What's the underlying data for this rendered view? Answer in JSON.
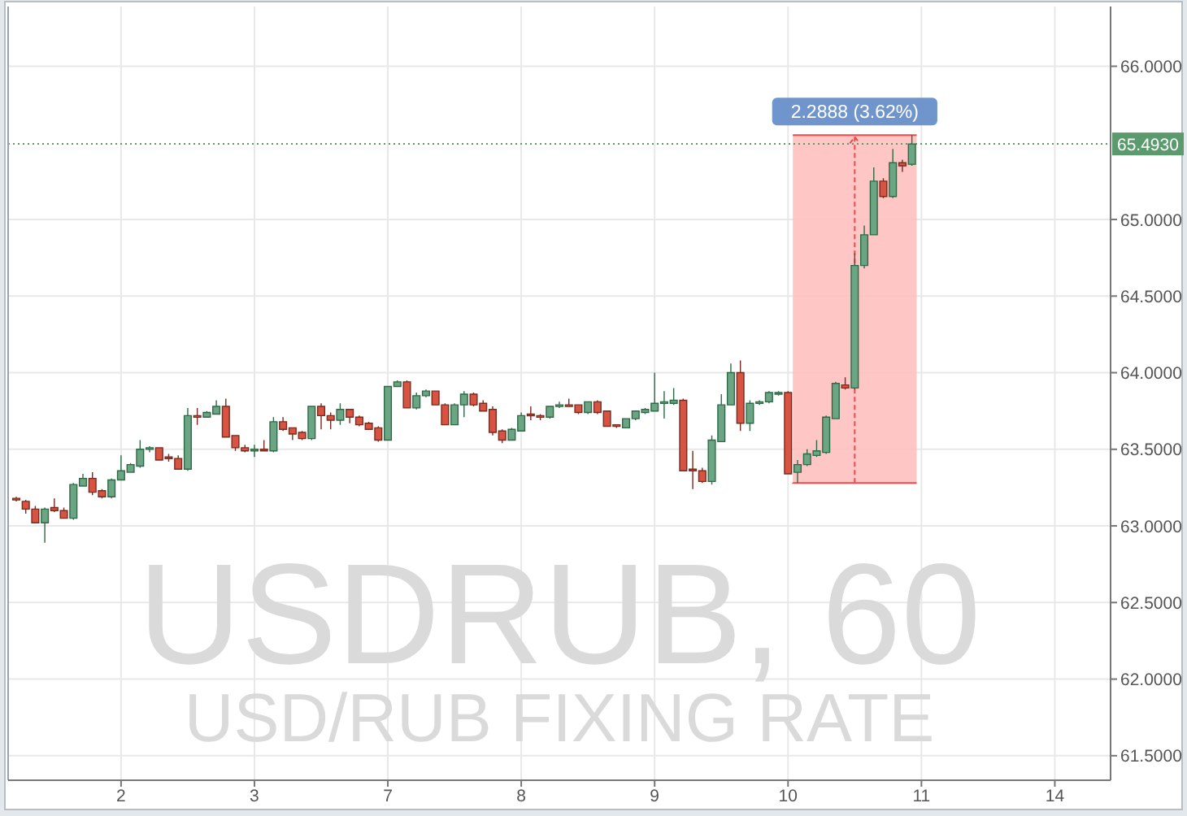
{
  "chart_data": {
    "type": "candlestick",
    "title": "USDRUB, 60",
    "subtitle": "USD/RUB FIXING RATE",
    "categories": [
      null,
      null,
      null,
      null,
      null,
      null,
      null,
      null,
      null,
      null,
      null,
      "2",
      null,
      null,
      null,
      null,
      null,
      null,
      null,
      null,
      null,
      null,
      null,
      null,
      null,
      "3",
      null,
      null,
      null,
      null,
      null,
      null,
      null,
      null,
      null,
      null,
      null,
      null,
      null,
      "7",
      null,
      null,
      null,
      null,
      null,
      null,
      null,
      null,
      null,
      null,
      null,
      null,
      null,
      "8",
      null,
      null,
      null,
      null,
      null,
      null,
      null,
      null,
      null,
      null,
      null,
      null,
      null,
      "9",
      null,
      null,
      null,
      null,
      null,
      null,
      null,
      null,
      null,
      null,
      null,
      null,
      null,
      "10",
      null,
      null,
      null,
      null,
      null,
      null,
      null,
      null,
      null,
      null,
      null,
      null,
      null,
      "11",
      null,
      null,
      null,
      null,
      null,
      null,
      null,
      null,
      null,
      null,
      null,
      null,
      null,
      "14",
      null,
      null,
      null,
      null,
      null
    ],
    "ohlc": [
      [
        63.18,
        63.19,
        63.16,
        63.17
      ],
      [
        63.16,
        63.17,
        63.08,
        63.11
      ],
      [
        63.11,
        63.13,
        63.02,
        63.02
      ],
      [
        63.02,
        63.12,
        62.89,
        63.11
      ],
      [
        63.12,
        63.18,
        63.09,
        63.1
      ],
      [
        63.1,
        63.12,
        63.05,
        63.05
      ],
      [
        63.05,
        63.28,
        63.04,
        63.27
      ],
      [
        63.26,
        63.34,
        63.26,
        63.31
      ],
      [
        63.31,
        63.35,
        63.2,
        63.22
      ],
      [
        63.23,
        63.24,
        63.18,
        63.19
      ],
      [
        63.19,
        63.31,
        63.18,
        63.3
      ],
      [
        63.3,
        63.46,
        63.3,
        63.36
      ],
      [
        63.35,
        63.41,
        63.35,
        63.4
      ],
      [
        63.39,
        63.56,
        63.38,
        63.5
      ],
      [
        63.5,
        63.52,
        63.48,
        63.51
      ],
      [
        63.51,
        63.51,
        63.43,
        63.43
      ],
      [
        63.45,
        63.47,
        63.42,
        63.44
      ],
      [
        63.44,
        63.46,
        63.37,
        63.37
      ],
      [
        63.37,
        63.77,
        63.36,
        63.72
      ],
      [
        63.72,
        63.77,
        63.66,
        63.71
      ],
      [
        63.71,
        63.75,
        63.71,
        63.74
      ],
      [
        63.73,
        63.82,
        63.73,
        63.78
      ],
      [
        63.78,
        63.83,
        63.58,
        63.58
      ],
      [
        63.59,
        63.59,
        63.49,
        63.51
      ],
      [
        63.51,
        63.53,
        63.48,
        63.49
      ],
      [
        63.49,
        63.53,
        63.45,
        63.5
      ],
      [
        63.5,
        63.56,
        63.49,
        63.49
      ],
      [
        63.49,
        63.71,
        63.48,
        63.68
      ],
      [
        63.68,
        63.71,
        63.62,
        63.63
      ],
      [
        63.64,
        63.64,
        63.56,
        63.6
      ],
      [
        63.61,
        63.62,
        63.56,
        63.57
      ],
      [
        63.57,
        63.78,
        63.56,
        63.78
      ],
      [
        63.78,
        63.8,
        63.63,
        63.72
      ],
      [
        63.72,
        63.74,
        63.63,
        63.69
      ],
      [
        63.69,
        63.8,
        63.66,
        63.76
      ],
      [
        63.76,
        63.76,
        63.67,
        63.71
      ],
      [
        63.71,
        63.72,
        63.65,
        63.66
      ],
      [
        63.67,
        63.68,
        63.63,
        63.63
      ],
      [
        63.64,
        63.65,
        63.55,
        63.56
      ],
      [
        63.56,
        63.91,
        63.56,
        63.91
      ],
      [
        63.91,
        63.95,
        63.91,
        63.94
      ],
      [
        63.94,
        63.95,
        63.77,
        63.77
      ],
      [
        63.77,
        63.87,
        63.76,
        63.85
      ],
      [
        63.85,
        63.89,
        63.84,
        63.88
      ],
      [
        63.88,
        63.88,
        63.79,
        63.79
      ],
      [
        63.79,
        63.8,
        63.66,
        63.66
      ],
      [
        63.66,
        63.8,
        63.66,
        63.79
      ],
      [
        63.79,
        63.88,
        63.71,
        63.86
      ],
      [
        63.86,
        63.87,
        63.78,
        63.79
      ],
      [
        63.8,
        63.82,
        63.75,
        63.75
      ],
      [
        63.76,
        63.78,
        63.59,
        63.61
      ],
      [
        63.62,
        63.63,
        63.54,
        63.56
      ],
      [
        63.56,
        63.64,
        63.56,
        63.63
      ],
      [
        63.62,
        63.74,
        63.62,
        63.72
      ],
      [
        63.73,
        63.78,
        63.69,
        63.72
      ],
      [
        63.72,
        63.73,
        63.69,
        63.71
      ],
      [
        63.71,
        63.78,
        63.7,
        63.78
      ],
      [
        63.78,
        63.81,
        63.77,
        63.79
      ],
      [
        63.79,
        63.83,
        63.78,
        63.78
      ],
      [
        63.79,
        63.79,
        63.73,
        63.74
      ],
      [
        63.74,
        63.81,
        63.73,
        63.81
      ],
      [
        63.81,
        63.82,
        63.73,
        63.74
      ],
      [
        63.75,
        63.75,
        63.65,
        63.65
      ],
      [
        63.66,
        63.66,
        63.64,
        63.65
      ],
      [
        63.64,
        63.7,
        63.64,
        63.7
      ],
      [
        63.7,
        63.75,
        63.69,
        63.75
      ],
      [
        63.74,
        63.77,
        63.73,
        63.76
      ],
      [
        63.75,
        64.0,
        63.75,
        63.8
      ],
      [
        63.8,
        63.88,
        63.7,
        63.81
      ],
      [
        63.8,
        63.9,
        63.79,
        63.82
      ],
      [
        63.82,
        63.83,
        63.36,
        63.36
      ],
      [
        63.37,
        63.49,
        63.24,
        63.36
      ],
      [
        63.36,
        63.38,
        63.28,
        63.29
      ],
      [
        63.29,
        63.59,
        63.27,
        63.56
      ],
      [
        63.55,
        63.86,
        63.55,
        63.79
      ],
      [
        63.79,
        64.06,
        63.79,
        64.0
      ],
      [
        64.0,
        64.08,
        63.62,
        63.67
      ],
      [
        63.67,
        63.82,
        63.62,
        63.8
      ],
      [
        63.8,
        63.82,
        63.79,
        63.81
      ],
      [
        63.81,
        63.88,
        63.8,
        63.87
      ],
      [
        63.86,
        63.88,
        63.85,
        63.87
      ],
      [
        63.87,
        63.88,
        63.34,
        63.34
      ],
      [
        63.35,
        63.43,
        63.28,
        63.4
      ],
      [
        63.4,
        63.5,
        63.39,
        63.47
      ],
      [
        63.46,
        63.56,
        63.45,
        63.49
      ],
      [
        63.48,
        63.72,
        63.47,
        63.71
      ],
      [
        63.7,
        63.94,
        63.7,
        63.93
      ],
      [
        63.92,
        63.97,
        63.89,
        63.9
      ],
      [
        63.9,
        64.78,
        63.89,
        64.7
      ],
      [
        64.7,
        64.96,
        64.68,
        64.9
      ],
      [
        64.9,
        65.34,
        64.9,
        65.25
      ],
      [
        65.25,
        65.27,
        65.14,
        65.15
      ],
      [
        65.15,
        65.46,
        65.14,
        65.37
      ],
      [
        65.37,
        65.39,
        65.31,
        65.35
      ],
      [
        65.36,
        65.55,
        65.35,
        65.493
      ],
      null,
      null,
      null,
      null,
      null,
      null,
      null,
      null,
      null,
      null,
      null,
      null,
      null,
      null,
      null,
      null,
      null,
      null,
      null,
      null
    ],
    "ylim": [
      61.34,
      66.39
    ],
    "yticks": [
      {
        "value": 61.5,
        "label": "61.5000"
      },
      {
        "value": 62,
        "label": "62.0000"
      },
      {
        "value": 62.5,
        "label": "62.5000"
      },
      {
        "value": 63,
        "label": "63.0000"
      },
      {
        "value": 63.5,
        "label": "63.5000"
      },
      {
        "value": 64,
        "label": "64.0000"
      },
      {
        "value": 64.5,
        "label": "64.5000"
      },
      {
        "value": 65,
        "label": "65.0000"
      },
      {
        "value": 66,
        "label": "66.0000"
      }
    ],
    "grid": true,
    "ref_lines": [
      {
        "axis": "y",
        "value": 65.493,
        "label": "65.4930",
        "color": "#5a9a6c",
        "line_style": "dotted"
      }
    ],
    "bands": [
      {
        "axis": "y",
        "from": 63.28,
        "to": 65.55,
        "label": "2.2888 (3.62%)",
        "color": "#ffbcbc"
      }
    ]
  }
}
